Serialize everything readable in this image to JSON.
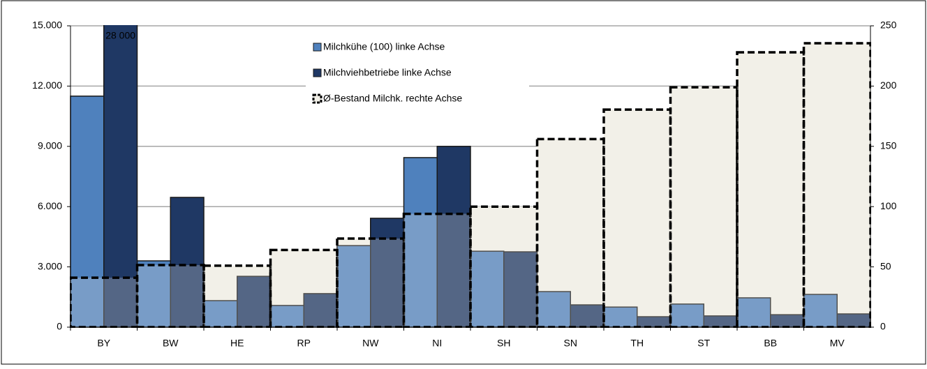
{
  "chart_data": {
    "type": "bar",
    "categories": [
      "BY",
      "BW",
      "HE",
      "RP",
      "NW",
      "NI",
      "SH",
      "SN",
      "TH",
      "ST",
      "BB",
      "MV"
    ],
    "series": [
      {
        "name": "Milchkühe (100) linke Achse",
        "color": "#4f81bd",
        "values": [
          11500,
          3300,
          1320,
          1080,
          4060,
          8440,
          3780,
          1770,
          1000,
          1150,
          1460,
          1630
        ]
      },
      {
        "name": "Milchviehbetriebe linke Achse",
        "color": "#1f3864",
        "values": [
          28000,
          6460,
          2530,
          1670,
          5420,
          9000,
          3750,
          1110,
          520,
          560,
          620,
          660
        ],
        "value_labels": [
          "28 000",
          null,
          null,
          null,
          null,
          null,
          null,
          null,
          null,
          null,
          null,
          null
        ]
      },
      {
        "name": "Ø-Bestand Milchk. rechte Achse",
        "color": "#f2f0e8",
        "axis": "y2",
        "dashed": true,
        "values": [
          41,
          51.5,
          51,
          64,
          73.5,
          94,
          100,
          156,
          180.5,
          199,
          228,
          235.5
        ]
      }
    ],
    "ylim": [
      0,
      15000
    ],
    "yticks": [
      0,
      {
        "value": 3000,
        "label": "3.000"
      },
      {
        "value": 6000,
        "label": "6.000"
      },
      {
        "value": 9000,
        "label": "9.000"
      },
      {
        "value": 12000,
        "label": "12.000"
      },
      {
        "value": 15000,
        "label": "15.000"
      }
    ],
    "y2lim": [
      0,
      250
    ],
    "y2ticks": [
      0,
      50,
      100,
      150,
      200,
      250
    ],
    "grid": true
  }
}
